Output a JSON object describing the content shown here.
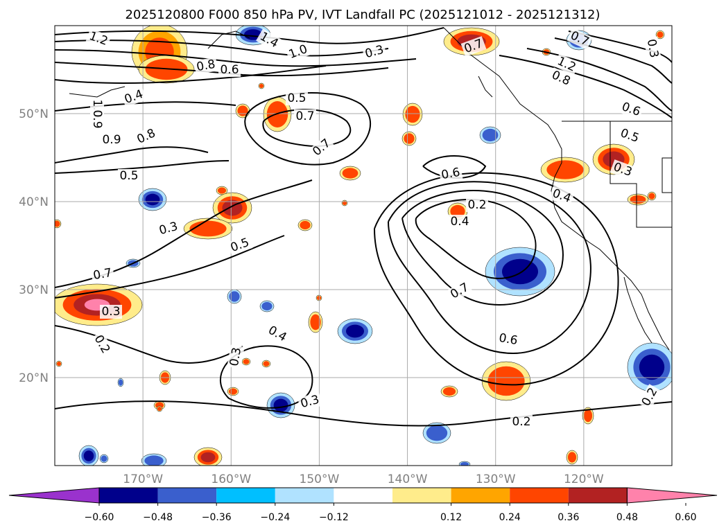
{
  "title": "2025120800 F000 850 hPa PV, IVT Landfall PC (2025121012 - 2025121312)",
  "map": {
    "lon_range": [
      -180,
      -110
    ],
    "lat_range": [
      10,
      60
    ],
    "lat_labels": [
      "50°N",
      "40°N",
      "30°N",
      "20°N"
    ],
    "lon_labels": [
      "170°W",
      "160°W",
      "150°W",
      "140°W",
      "130°W",
      "120°W"
    ],
    "gridlines": true,
    "contour_labels": [
      "1.2",
      "1.4",
      "1.0",
      "0.8",
      "0.6",
      "0.3",
      "0.4",
      "0.7",
      "0.7",
      "1.2",
      "0.8",
      "0.6",
      "1.0",
      "0.9",
      "0.9",
      "0.8",
      "0.7",
      "0.5",
      "0.7",
      "0.6",
      "0.5",
      "0.2",
      "0.5",
      "0.3",
      "0.3",
      "0.4",
      "0.5",
      "0.4",
      "0.7",
      "0.4",
      "0.3",
      "0.7",
      "0.2",
      "0.3",
      "0.3",
      "0.6",
      "0.3",
      "0.2",
      "0.2"
    ]
  },
  "colorbar": {
    "ticks": [
      "−0.60",
      "−0.48",
      "−0.36",
      "−0.24",
      "−0.12",
      "0.12",
      "0.24",
      "0.36",
      "0.48",
      "0.60"
    ],
    "colors": [
      "#9a32cd",
      "#00008b",
      "#3a5fcd",
      "#00bfff",
      "#b0e2ff",
      "#ffffff",
      "#ffec8b",
      "#ffa500",
      "#ff4500",
      "#b22222",
      "#ff82ab"
    ],
    "extend": "both"
  }
}
